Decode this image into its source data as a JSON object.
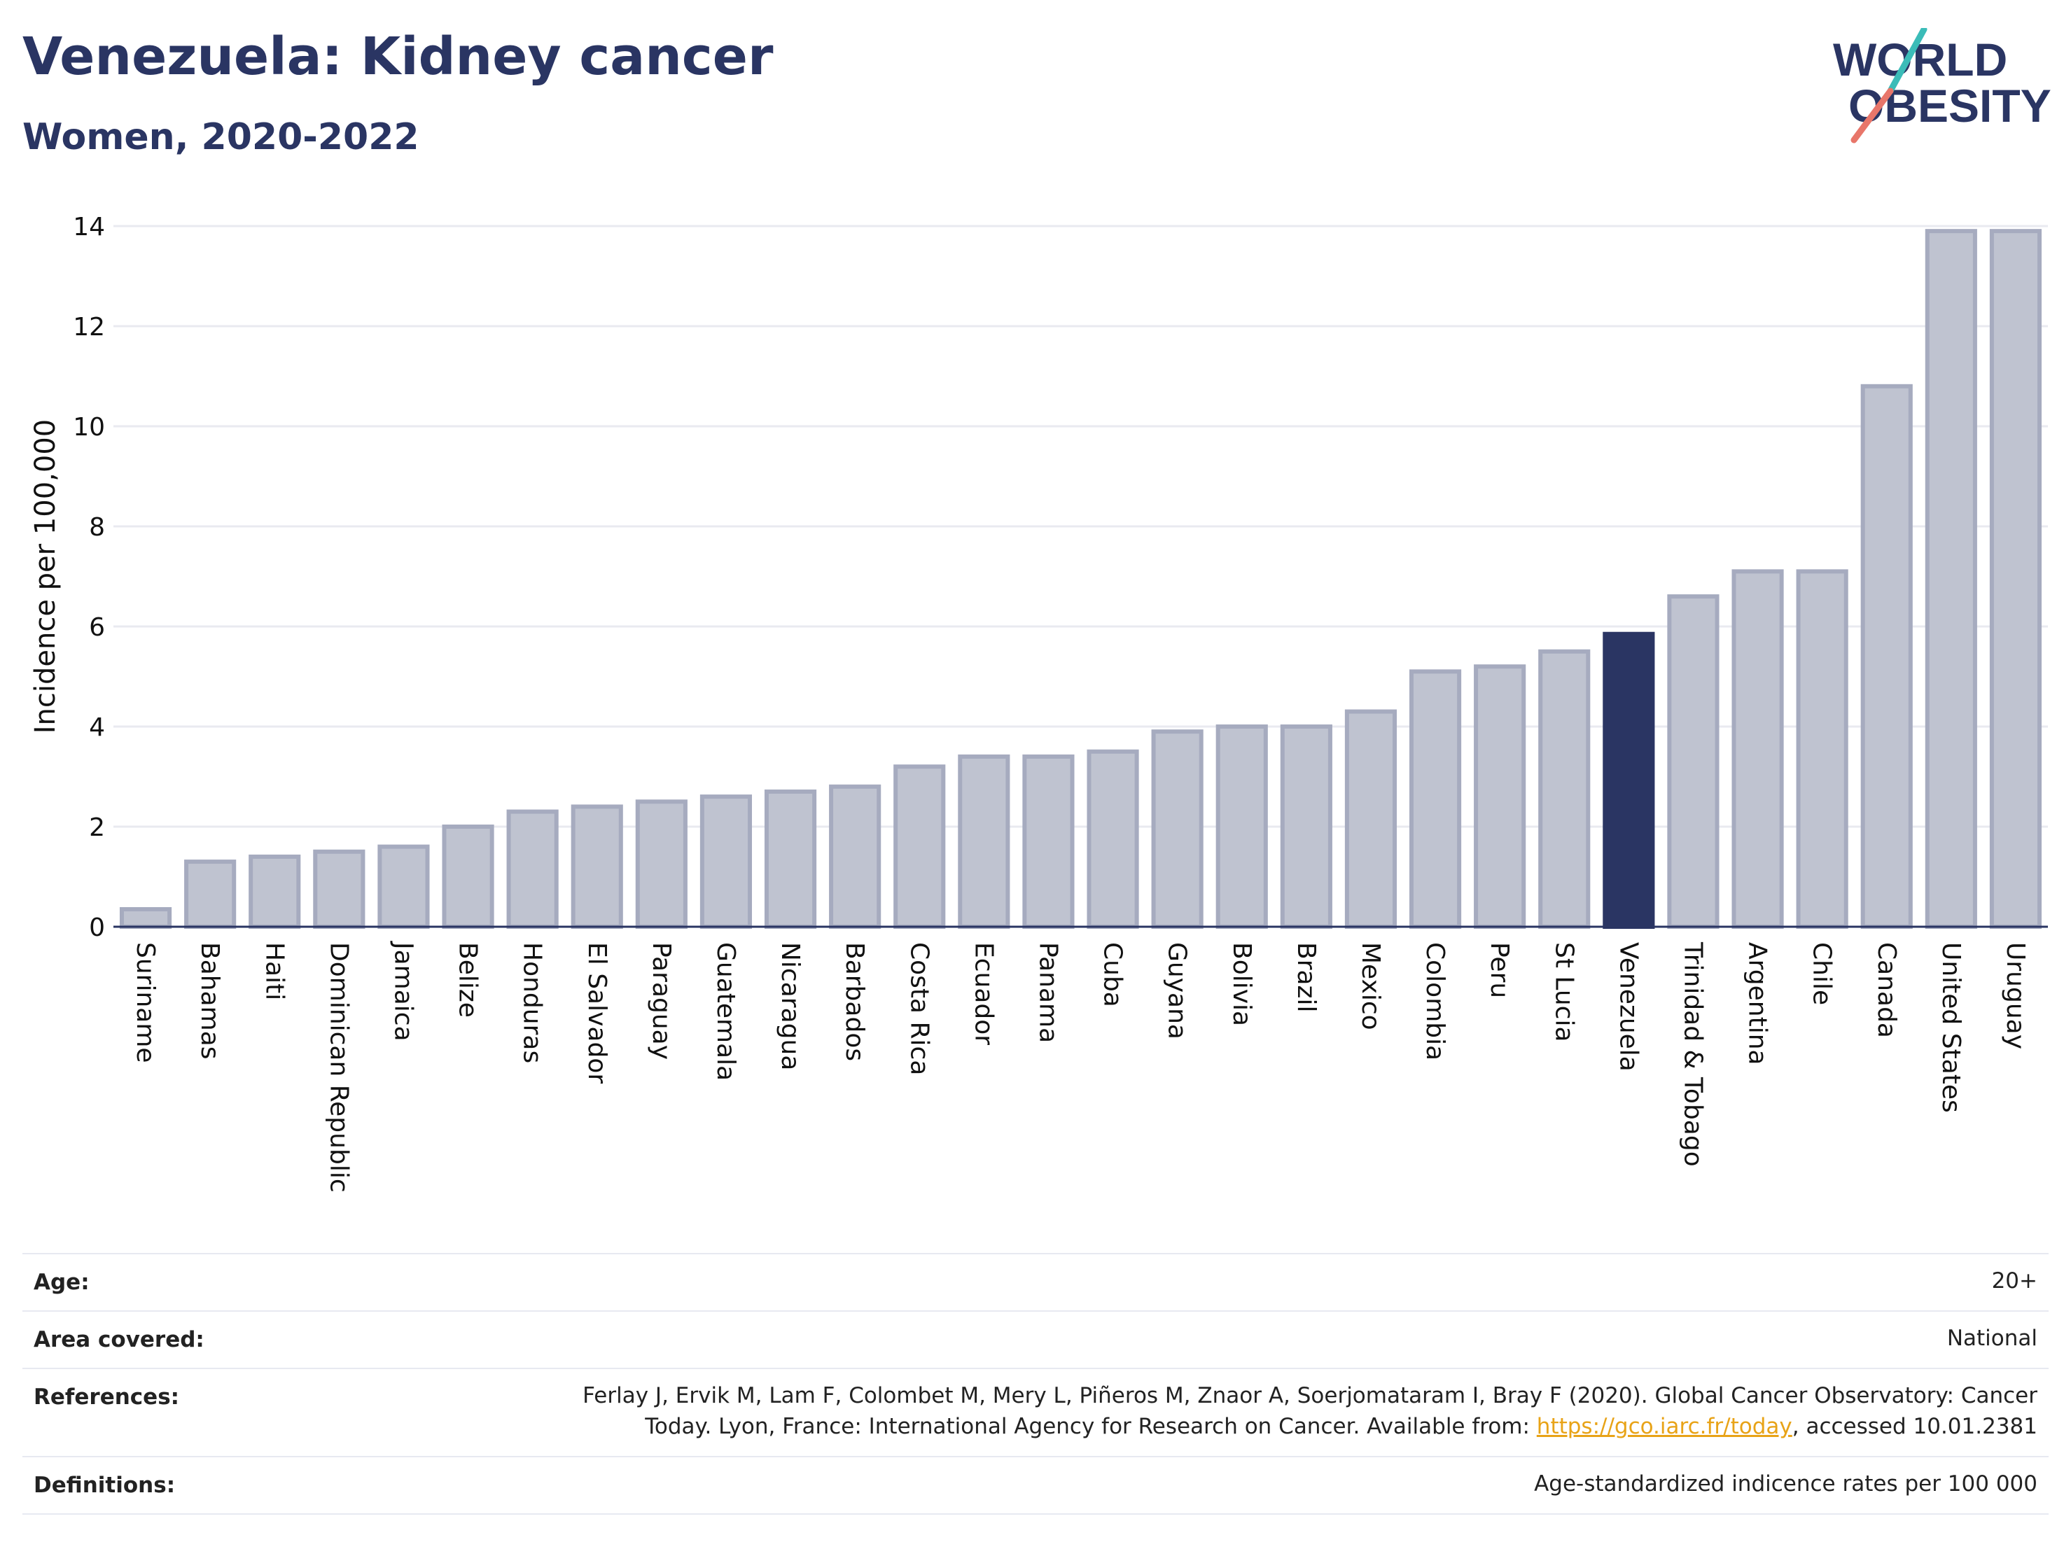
{
  "header": {
    "title": "Venezuela: Kidney cancer",
    "subtitle": "Women, 2020-2022"
  },
  "logo": {
    "line1": "WORLD",
    "line2": "OBESITY"
  },
  "colors": {
    "highlight": "#2a3563",
    "bar_fill": "#bfc3d0",
    "bar_stroke": "#a6abbf",
    "teal": "#3bbcb8",
    "coral": "#e8766a",
    "link": "#e8a317"
  },
  "chart_data": {
    "type": "bar",
    "ylabel": "Incidence per 100,000",
    "ylim": [
      0,
      14
    ],
    "yticks": [
      0,
      2,
      4,
      6,
      8,
      10,
      12,
      14
    ],
    "grid": true,
    "highlight": "Venezuela",
    "categories": [
      "Suriname",
      "Bahamas",
      "Haiti",
      "Dominican Republic",
      "Jamaica",
      "Belize",
      "Honduras",
      "El Salvador",
      "Paraguay",
      "Guatemala",
      "Nicaragua",
      "Barbados",
      "Costa Rica",
      "Ecuador",
      "Panama",
      "Cuba",
      "Guyana",
      "Bolivia",
      "Brazil",
      "Mexico",
      "Colombia",
      "Peru",
      "St Lucia",
      "Venezuela",
      "Trinidad & Tobago",
      "Argentina",
      "Chile",
      "Canada",
      "United States",
      "Uruguay"
    ],
    "values": [
      0.35,
      1.3,
      1.4,
      1.5,
      1.6,
      2.0,
      2.3,
      2.4,
      2.5,
      2.6,
      2.7,
      2.8,
      3.2,
      3.4,
      3.4,
      3.5,
      3.9,
      4.0,
      4.0,
      4.3,
      5.1,
      5.2,
      5.5,
      5.85,
      6.6,
      7.1,
      7.1,
      10.8,
      13.9,
      13.9
    ]
  },
  "meta": {
    "age_label": "Age:",
    "age_value": "20+",
    "area_label": "Area covered:",
    "area_value": "National",
    "references_label": "References:",
    "references_line1": "Ferlay J, Ervik M, Lam F, Colombet M, Mery L, Piñeros M, Znaor A, Soerjomataram I, Bray F (2020). Global Cancer Observatory: Cancer",
    "references_line2_pre": "Today. Lyon, France: International Agency for Research on Cancer. Available from: ",
    "references_link": "https://gco.iarc.fr/today",
    "references_line2_post": ", accessed 10.01.2381",
    "definitions_label": "Definitions:",
    "definitions_value": "Age-standardized indicence rates per 100 000"
  }
}
